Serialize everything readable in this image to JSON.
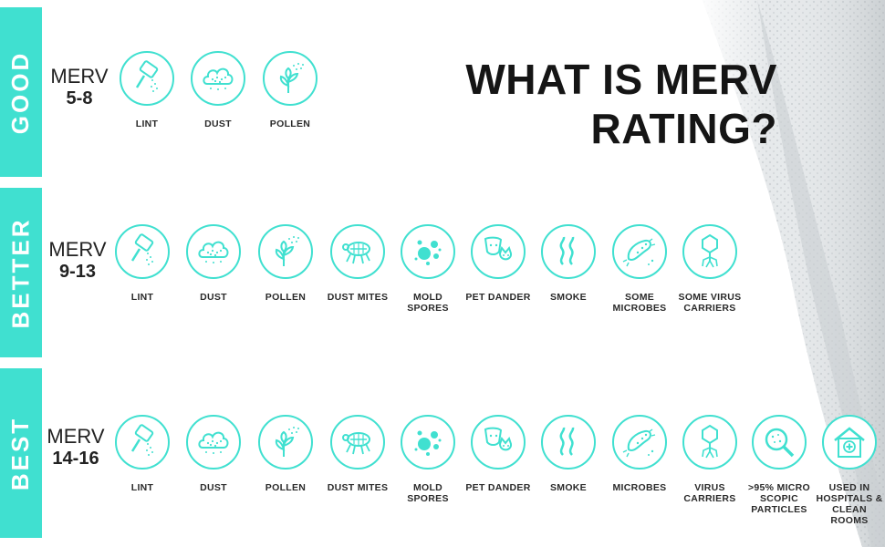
{
  "title": "WHAT IS MERV RATING?",
  "accent_color": "#40e0d0",
  "tiers": [
    {
      "band": "GOOD",
      "merv_label": "MERV",
      "merv_range": "5-8",
      "items": [
        {
          "icon": "lint-roller-icon",
          "label": "LINT"
        },
        {
          "icon": "dust-cloud-icon",
          "label": "DUST"
        },
        {
          "icon": "pollen-flower-icon",
          "label": "POLLEN"
        }
      ]
    },
    {
      "band": "BETTER",
      "merv_label": "MERV",
      "merv_range": "9-13",
      "items": [
        {
          "icon": "lint-roller-icon",
          "label": "LINT"
        },
        {
          "icon": "dust-cloud-icon",
          "label": "DUST"
        },
        {
          "icon": "pollen-flower-icon",
          "label": "POLLEN"
        },
        {
          "icon": "dust-mite-icon",
          "label": "DUST MITES"
        },
        {
          "icon": "mold-spores-icon",
          "label": "MOLD SPORES"
        },
        {
          "icon": "pet-dander-icon",
          "label": "PET DANDER"
        },
        {
          "icon": "smoke-icon",
          "label": "SMOKE"
        },
        {
          "icon": "microbes-icon",
          "label": "SOME MICROBES"
        },
        {
          "icon": "virus-icon",
          "label": "SOME VIRUS CARRIERS"
        }
      ]
    },
    {
      "band": "BEST",
      "merv_label": "MERV",
      "merv_range": "14-16",
      "items": [
        {
          "icon": "lint-roller-icon",
          "label": "LINT"
        },
        {
          "icon": "dust-cloud-icon",
          "label": "DUST"
        },
        {
          "icon": "pollen-flower-icon",
          "label": "POLLEN"
        },
        {
          "icon": "dust-mite-icon",
          "label": "DUST MITES"
        },
        {
          "icon": "mold-spores-icon",
          "label": "MOLD SPORES"
        },
        {
          "icon": "pet-dander-icon",
          "label": "PET DANDER"
        },
        {
          "icon": "smoke-icon",
          "label": "SMOKE"
        },
        {
          "icon": "microbes-icon",
          "label": "MICROBES"
        },
        {
          "icon": "virus-icon",
          "label": "VIRUS CARRIERS"
        },
        {
          "icon": "magnifier-particles-icon",
          "label": ">95% MICRO SCOPIC PARTICLES"
        },
        {
          "icon": "hospital-icon",
          "label": "USED IN HOSPITALS & CLEAN ROOMS"
        }
      ]
    }
  ]
}
